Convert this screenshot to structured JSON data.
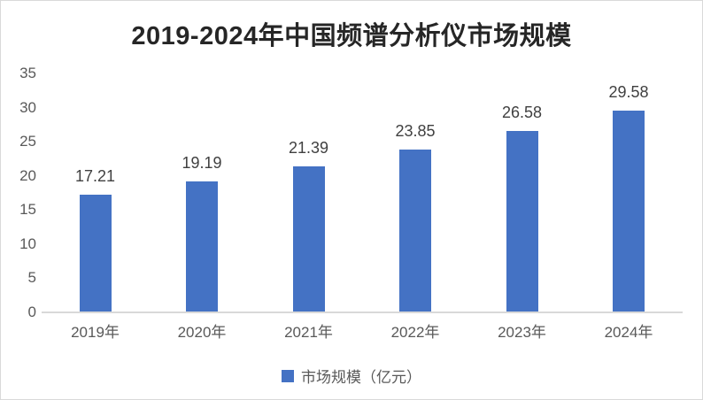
{
  "page": {
    "background_color": "#ffffff",
    "frame_border_color": "#d9d9d9"
  },
  "title": {
    "text": "2019-2024年中国频谱分析仪市场规模",
    "color": "#262626"
  },
  "legend": {
    "label": "市场规模（亿元）",
    "swatch_color": "#4472C4"
  },
  "chart_data": {
    "type": "bar",
    "title": "2019-2024年中国频谱分析仪市场规模",
    "categories": [
      "2019年",
      "2020年",
      "2021年",
      "2022年",
      "2023年",
      "2024年"
    ],
    "series": [
      {
        "name": "市场规模（亿元）",
        "values": [
          17.21,
          19.19,
          21.39,
          23.85,
          26.58,
          29.58
        ]
      }
    ],
    "data_labels": [
      "17.21",
      "19.19",
      "21.39",
      "23.85",
      "26.58",
      "29.58"
    ],
    "xlabel": "",
    "ylabel": "",
    "ylim": [
      0,
      35
    ],
    "yticks": [
      0,
      5,
      10,
      15,
      20,
      25,
      30,
      35
    ],
    "grid": false,
    "legend_position": "bottom",
    "bar_color": "#4472C4",
    "axis_tick_color": "#595959",
    "data_label_color": "#404040",
    "baseline_color": "#d9d9d9"
  }
}
